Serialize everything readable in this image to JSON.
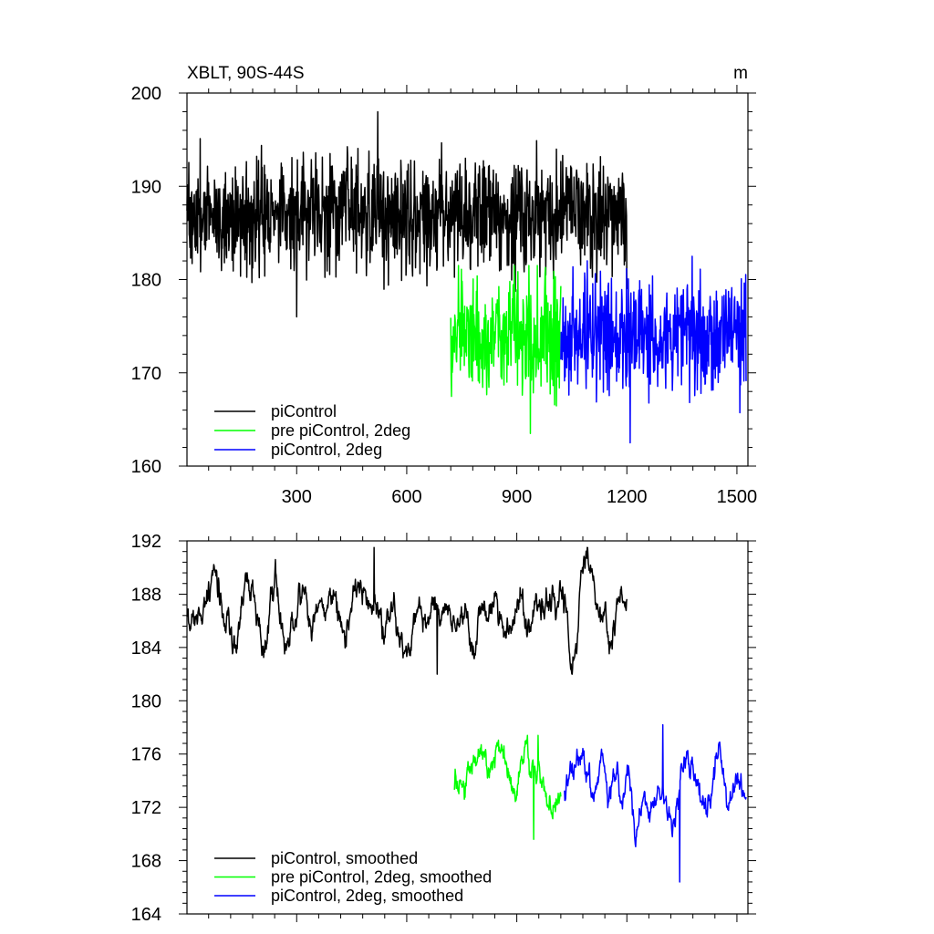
{
  "chart_data": [
    {
      "type": "line",
      "title": "XBLT, 90S-44S",
      "units": "m",
      "xlabel": "",
      "ylabel": "",
      "xlim": [
        1,
        1530
      ],
      "ylim": [
        160,
        200
      ],
      "x_ticks": [
        "300",
        "600",
        "900",
        "1200",
        "1500"
      ],
      "y_ticks": [
        "160",
        "170",
        "180",
        "190",
        "200"
      ],
      "grid": false,
      "legend_position": "bottom-left",
      "series": [
        {
          "name": "piControl",
          "color": "#000000",
          "x_start": 1,
          "x_end": 1200,
          "mean": 187,
          "amplitude": 3,
          "min": 176,
          "max": 198,
          "kind": "raw"
        },
        {
          "name": "pre piControl, 2deg",
          "color": "#00ff00",
          "x_start": 720,
          "x_end": 1020,
          "mean": 174,
          "amplitude": 3,
          "min": 163.5,
          "max": 181.5,
          "kind": "raw"
        },
        {
          "name": "piControl, 2deg",
          "color": "#0000ff",
          "x_start": 1020,
          "x_end": 1525,
          "mean": 174,
          "amplitude": 3,
          "min": 162.5,
          "max": 182.5,
          "kind": "raw"
        }
      ]
    },
    {
      "type": "line",
      "title": "",
      "xlabel": "",
      "ylabel": "",
      "xlim": [
        1,
        1530
      ],
      "ylim": [
        164,
        192
      ],
      "x_ticks": [],
      "y_ticks": [
        "164",
        "168",
        "172",
        "176",
        "180",
        "184",
        "188",
        "192"
      ],
      "grid": false,
      "legend_position": "bottom-left",
      "series": [
        {
          "name": "piControl, smoothed",
          "color": "#000000",
          "x_start": 1,
          "x_end": 1200,
          "mean": 187,
          "amplitude": 1.6,
          "min": 182,
          "max": 191.5,
          "kind": "smoothed"
        },
        {
          "name": "pre piControl, 2deg, smoothed",
          "color": "#00ff00",
          "x_start": 730,
          "x_end": 1020,
          "mean": 174,
          "amplitude": 1.5,
          "min": 169.6,
          "max": 177.4,
          "kind": "smoothed"
        },
        {
          "name": "piControl, 2deg, smoothed",
          "color": "#0000ff",
          "x_start": 1030,
          "x_end": 1525,
          "mean": 174,
          "amplitude": 1.6,
          "min": 166.4,
          "max": 178.2,
          "kind": "smoothed"
        }
      ]
    }
  ]
}
